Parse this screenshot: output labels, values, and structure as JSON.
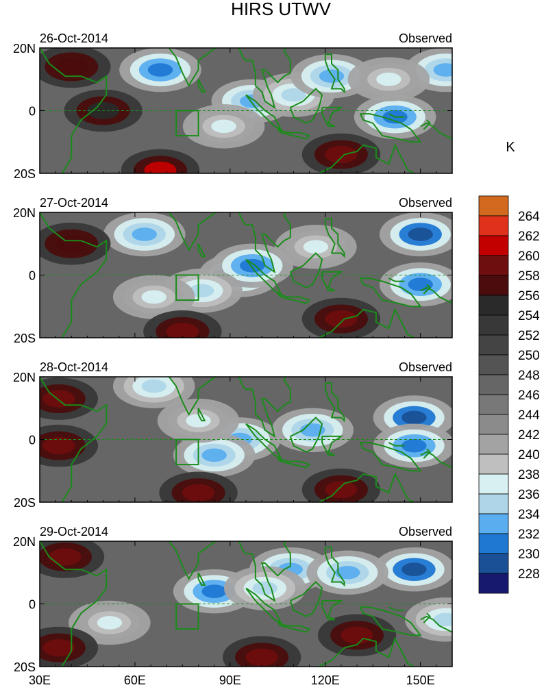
{
  "figure": {
    "title": "HIRS UTWV",
    "units_label": "K"
  },
  "chart_data": {
    "type": "heatmap",
    "variable": "HIRS UTWV",
    "units": "K",
    "x_axis": {
      "range": [
        30,
        160
      ],
      "ticks": [
        30,
        60,
        90,
        120,
        150
      ],
      "tick_labels": [
        "30E",
        "60E",
        "90E",
        "120E",
        "150E"
      ]
    },
    "y_axis": {
      "range": [
        -20,
        20
      ],
      "ticks": [
        20,
        0,
        -20
      ],
      "tick_labels": [
        "20N",
        "0",
        "20S"
      ]
    },
    "equator_dashed_line": true,
    "coastlines": true,
    "box_region": {
      "lon": [
        73,
        80
      ],
      "lat": [
        -8,
        0
      ]
    },
    "colorbar": {
      "levels": [
        228,
        230,
        232,
        234,
        236,
        238,
        240,
        242,
        244,
        246,
        248,
        250,
        252,
        254,
        256,
        258,
        260,
        262,
        264
      ],
      "colors": [
        "#16196e",
        "#1a5196",
        "#1f78d2",
        "#5aaeef",
        "#aed6e8",
        "#d8f0f2",
        "#bfbfbf",
        "#a3a3a3",
        "#8b8b8b",
        "#787878",
        "#666666",
        "#545454",
        "#444444",
        "#383838",
        "#2a2a2a",
        "#4a0c0c",
        "#6e0e0e",
        "#c30000",
        "#e0321b",
        "#d2691e"
      ],
      "labels": [
        "228",
        "230",
        "232",
        "234",
        "236",
        "238",
        "240",
        "242",
        "244",
        "246",
        "248",
        "250",
        "252",
        "254",
        "256",
        "258",
        "260",
        "262",
        "264"
      ]
    },
    "panels": [
      {
        "date": "26-Oct-2014",
        "source": "Observed",
        "features": [
          {
            "lon": 68,
            "lat": 13,
            "value": 230
          },
          {
            "lon": 97,
            "lat": 3,
            "value": 232
          },
          {
            "lon": 110,
            "lat": 5,
            "value": 234
          },
          {
            "lon": 122,
            "lat": 11,
            "value": 233
          },
          {
            "lon": 142,
            "lat": -2,
            "value": 230
          },
          {
            "lon": 158,
            "lat": 13,
            "value": 233
          },
          {
            "lon": 140,
            "lat": 10,
            "value": 236
          },
          {
            "lon": 88,
            "lat": -5,
            "value": 237
          },
          {
            "lon": 50,
            "lat": 0,
            "value": 254
          },
          {
            "lon": 68,
            "lat": -19,
            "value": 260
          },
          {
            "lon": 125,
            "lat": -14,
            "value": 259
          },
          {
            "lon": 40,
            "lat": 14,
            "value": 256
          }
        ]
      },
      {
        "date": "27-Oct-2014",
        "source": "Observed",
        "features": [
          {
            "lon": 63,
            "lat": 13,
            "value": 232
          },
          {
            "lon": 93,
            "lat": 0,
            "value": 231
          },
          {
            "lon": 97,
            "lat": 3,
            "value": 231
          },
          {
            "lon": 150,
            "lat": 13,
            "value": 229
          },
          {
            "lon": 150,
            "lat": -3,
            "value": 231
          },
          {
            "lon": 117,
            "lat": 9,
            "value": 236
          },
          {
            "lon": 81,
            "lat": -5,
            "value": 234
          },
          {
            "lon": 66,
            "lat": -7,
            "value": 237
          },
          {
            "lon": 75,
            "lat": -18,
            "value": 259
          },
          {
            "lon": 125,
            "lat": -14,
            "value": 258
          },
          {
            "lon": 40,
            "lat": 10,
            "value": 257
          }
        ]
      },
      {
        "date": "28-Oct-2014",
        "source": "Observed",
        "features": [
          {
            "lon": 148,
            "lat": 7,
            "value": 229
          },
          {
            "lon": 148,
            "lat": -2,
            "value": 230
          },
          {
            "lon": 116,
            "lat": 3,
            "value": 233
          },
          {
            "lon": 93,
            "lat": 0,
            "value": 233
          },
          {
            "lon": 85,
            "lat": -5,
            "value": 232
          },
          {
            "lon": 66,
            "lat": 17,
            "value": 234
          },
          {
            "lon": 80,
            "lat": 6,
            "value": 236
          },
          {
            "lon": 125,
            "lat": -16,
            "value": 259
          },
          {
            "lon": 80,
            "lat": -17,
            "value": 259
          },
          {
            "lon": 36,
            "lat": 13,
            "value": 258
          },
          {
            "lon": 36,
            "lat": -2,
            "value": 258
          }
        ]
      },
      {
        "date": "29-Oct-2014",
        "source": "Observed",
        "features": [
          {
            "lon": 148,
            "lat": 11,
            "value": 229
          },
          {
            "lon": 85,
            "lat": 4,
            "value": 231
          },
          {
            "lon": 109,
            "lat": 11,
            "value": 232
          },
          {
            "lon": 127,
            "lat": 10,
            "value": 233
          },
          {
            "lon": 101,
            "lat": 5,
            "value": 235
          },
          {
            "lon": 158,
            "lat": -5,
            "value": 234
          },
          {
            "lon": 52,
            "lat": -6,
            "value": 237
          },
          {
            "lon": 100,
            "lat": -17,
            "value": 259
          },
          {
            "lon": 130,
            "lat": -10,
            "value": 259
          },
          {
            "lon": 38,
            "lat": 15,
            "value": 259
          },
          {
            "lon": 36,
            "lat": -14,
            "value": 259
          }
        ]
      }
    ]
  }
}
